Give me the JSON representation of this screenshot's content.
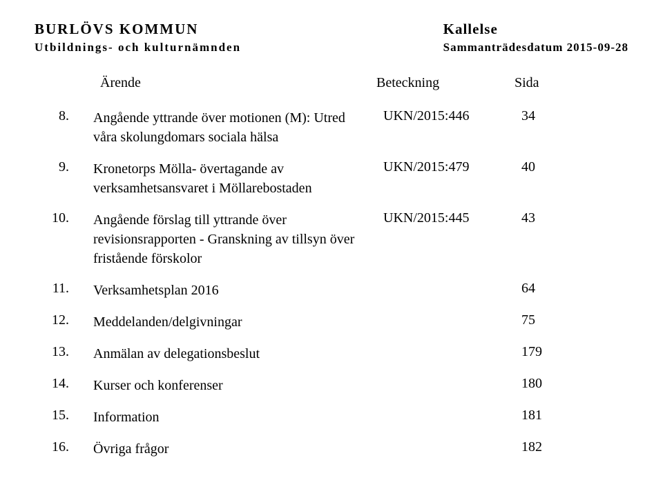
{
  "header": {
    "org_name": "BURLÖVS KOMMUN",
    "dept_name": "Utbildnings- och kulturnämnden",
    "doc_type": "Kallelse",
    "meeting_date": "Sammanträdesdatum 2015-09-28"
  },
  "columns": {
    "arende": "Ärende",
    "beteckning": "Beteckning",
    "sida": "Sida"
  },
  "items": [
    {
      "num": "8.",
      "title": "Angående yttrande över motionen (M): Utred våra skolungdomars sociala hälsa",
      "code": "UKN/2015:446",
      "page": "34"
    },
    {
      "num": "9.",
      "title": "Kronetorps Mölla- övertagande av verksamhetsansvaret i Möllarebostaden",
      "code": "UKN/2015:479",
      "page": "40"
    },
    {
      "num": "10.",
      "title": "Angående förslag till yttrande över revisionsrapporten - Granskning av tillsyn över fristående förskolor",
      "code": "UKN/2015:445",
      "page": "43"
    },
    {
      "num": "11.",
      "title": "Verksamhetsplan 2016",
      "code": "",
      "page": "64"
    },
    {
      "num": "12.",
      "title": "Meddelanden/delgivningar",
      "code": "",
      "page": "75"
    },
    {
      "num": "13.",
      "title": "Anmälan av delegationsbeslut",
      "code": "",
      "page": "179"
    },
    {
      "num": "14.",
      "title": "Kurser och konferenser",
      "code": "",
      "page": "180"
    },
    {
      "num": "15.",
      "title": "Information",
      "code": "",
      "page": "181"
    },
    {
      "num": "16.",
      "title": "Övriga frågor",
      "code": "",
      "page": "182"
    }
  ]
}
